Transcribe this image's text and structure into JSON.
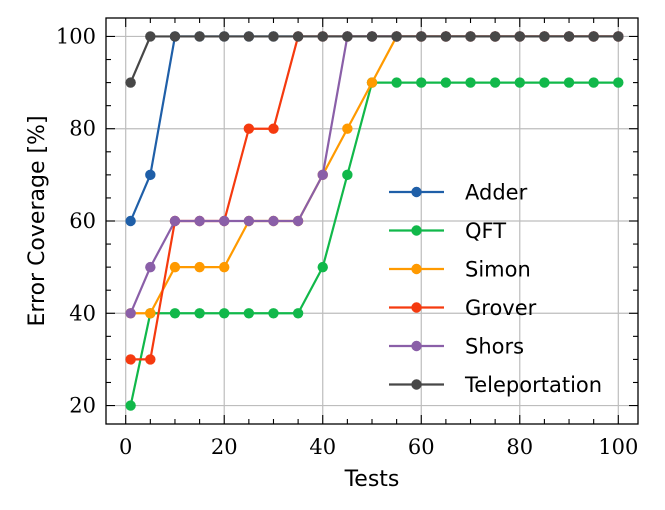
{
  "chart_data": {
    "type": "line",
    "title": "",
    "xlabel": "Tests",
    "ylabel": "Error Coverage [%]",
    "xlim": [
      -4,
      104
    ],
    "ylim": [
      16,
      104
    ],
    "xticks": [
      0,
      20,
      40,
      60,
      80,
      100
    ],
    "yticks": [
      20,
      40,
      60,
      80,
      100
    ],
    "grid": true,
    "legend_position": "lower-right",
    "series": [
      {
        "name": "Adder",
        "color": "#1f5fa8",
        "x": [
          1,
          5,
          10,
          15,
          20,
          25,
          30,
          35,
          40,
          45,
          50,
          55,
          60,
          65,
          70,
          75,
          80,
          85,
          90,
          95,
          100
        ],
        "y": [
          60,
          70,
          100,
          100,
          100,
          100,
          100,
          100,
          100,
          100,
          100,
          100,
          100,
          100,
          100,
          100,
          100,
          100,
          100,
          100,
          100
        ]
      },
      {
        "name": "QFT",
        "color": "#11b84a",
        "x": [
          1,
          5,
          10,
          15,
          20,
          25,
          30,
          35,
          40,
          45,
          50,
          55,
          60,
          65,
          70,
          75,
          80,
          85,
          90,
          95,
          100
        ],
        "y": [
          20,
          40,
          40,
          40,
          40,
          40,
          40,
          40,
          50,
          70,
          90,
          90,
          90,
          90,
          90,
          90,
          90,
          90,
          90,
          90,
          90
        ]
      },
      {
        "name": "Simon",
        "color": "#ff9a00",
        "x": [
          1,
          5,
          10,
          15,
          20,
          25,
          30,
          35,
          40,
          45,
          50,
          55,
          60,
          65,
          70,
          75,
          80,
          85,
          90,
          95,
          100
        ],
        "y": [
          40,
          40,
          50,
          50,
          50,
          60,
          60,
          60,
          70,
          80,
          90,
          100,
          100,
          100,
          100,
          100,
          100,
          100,
          100,
          100,
          100
        ]
      },
      {
        "name": "Grover",
        "color": "#f53a0f",
        "x": [
          1,
          5,
          10,
          15,
          20,
          25,
          30,
          35,
          40,
          45,
          50,
          55,
          60,
          65,
          70,
          75,
          80,
          85,
          90,
          95,
          100
        ],
        "y": [
          30,
          30,
          60,
          60,
          60,
          80,
          80,
          100,
          100,
          100,
          100,
          100,
          100,
          100,
          100,
          100,
          100,
          100,
          100,
          100,
          100
        ]
      },
      {
        "name": "Shors",
        "color": "#8a5fa8",
        "x": [
          1,
          5,
          10,
          15,
          20,
          25,
          30,
          35,
          40,
          45,
          50,
          55,
          60,
          65,
          70,
          75,
          80,
          85,
          90,
          95,
          100
        ],
        "y": [
          40,
          50,
          60,
          60,
          60,
          60,
          60,
          60,
          70,
          100,
          100,
          100,
          100,
          100,
          100,
          100,
          100,
          100,
          100,
          100,
          100
        ]
      },
      {
        "name": "Teleportation",
        "color": "#474747",
        "x": [
          1,
          5,
          10,
          15,
          20,
          25,
          30,
          35,
          40,
          45,
          50,
          55,
          60,
          65,
          70,
          75,
          80,
          85,
          90,
          95,
          100
        ],
        "y": [
          90,
          100,
          100,
          100,
          100,
          100,
          100,
          100,
          100,
          100,
          100,
          100,
          100,
          100,
          100,
          100,
          100,
          100,
          100,
          100,
          100
        ]
      }
    ]
  }
}
